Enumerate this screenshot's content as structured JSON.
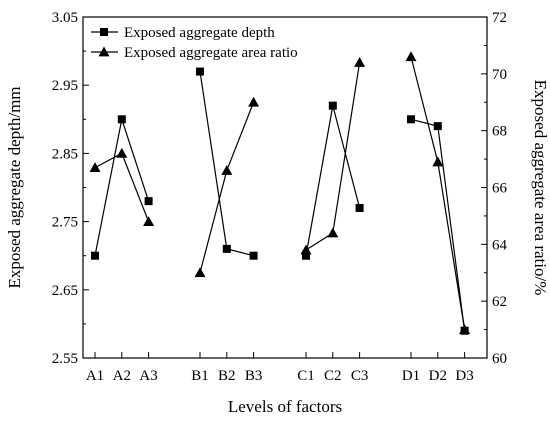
{
  "chart_data": {
    "type": "line",
    "xlabel": "Levels of factors",
    "ylabel_left": "Exposed aggregate depth/mm",
    "ylabel_right": "Exposed aggregate area ratio/%",
    "ylim_left": [
      2.55,
      3.05
    ],
    "ylim_right": [
      60,
      72
    ],
    "yticks_left": [
      "2.55",
      "2.65",
      "2.75",
      "2.85",
      "2.95",
      "3.05"
    ],
    "yticks_right": [
      "60",
      "62",
      "64",
      "66",
      "68",
      "70",
      "72"
    ],
    "groups": [
      {
        "categories": [
          "A1",
          "A2",
          "A3"
        ]
      },
      {
        "categories": [
          "B1",
          "B2",
          "B3"
        ]
      },
      {
        "categories": [
          "C1",
          "C2",
          "C3"
        ]
      },
      {
        "categories": [
          "D1",
          "D2",
          "D3"
        ]
      }
    ],
    "legend_position": "top-left",
    "grid": false,
    "series": [
      {
        "name": "Exposed aggregate depth",
        "marker": "square",
        "axis": "left",
        "values": [
          [
            2.7,
            2.9,
            2.78
          ],
          [
            2.97,
            2.71,
            2.7
          ],
          [
            2.7,
            2.92,
            2.77
          ],
          [
            2.9,
            2.89,
            2.59
          ]
        ]
      },
      {
        "name": "Exposed aggregate area ratio",
        "marker": "triangle",
        "axis": "right",
        "values": [
          [
            66.7,
            67.2,
            64.8
          ],
          [
            63.0,
            66.6,
            69.0
          ],
          [
            63.8,
            64.4,
            70.4
          ],
          [
            70.6,
            66.9,
            61.0
          ]
        ]
      }
    ]
  }
}
